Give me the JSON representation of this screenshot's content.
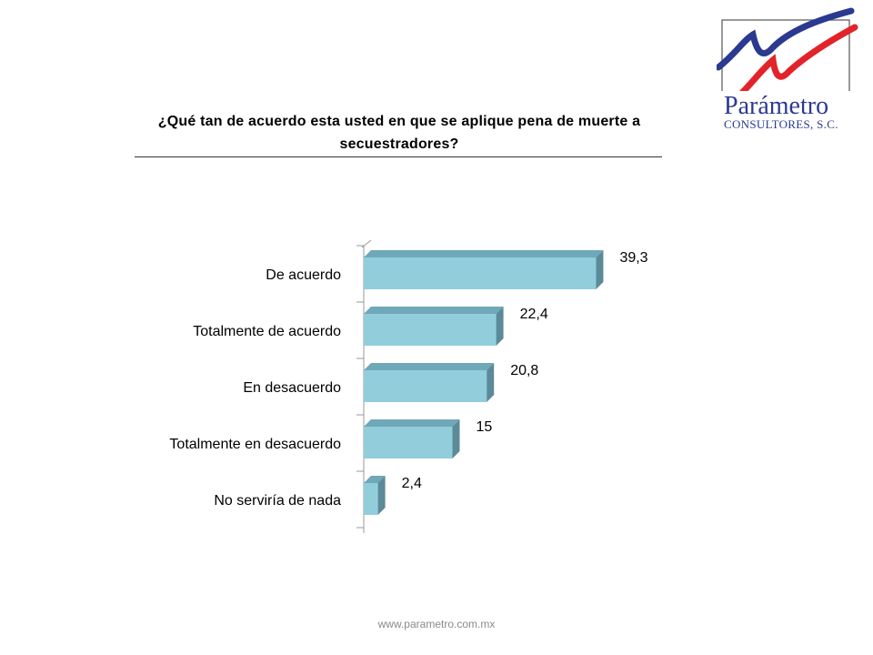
{
  "logo": {
    "name": "Parámetro",
    "subtitle": "Consultores, S.C."
  },
  "footer": {
    "url": "www.parametro.com.mx"
  },
  "colors": {
    "bar_front": "#92CDDC",
    "bar_top": "#6FA8B8",
    "bar_side": "#5B8A98",
    "logo_blue": "#2B3990",
    "logo_red": "#E2232A"
  },
  "chart_data": {
    "type": "bar",
    "orientation": "horizontal",
    "style": "3d",
    "title": "¿Qué tan de acuerdo esta usted en que se aplique pena de muerte a secuestradores?",
    "categories": [
      "De acuerdo",
      "Totalmente de acuerdo",
      "En desacuerdo",
      "Totalmente en desacuerdo",
      "No serviría de nada"
    ],
    "values": [
      39.3,
      22.4,
      20.8,
      15,
      2.4
    ],
    "value_labels": [
      "39,3",
      "22,4",
      "20,8",
      "15",
      "2,4"
    ],
    "xlim": [
      0,
      40
    ],
    "grid": false,
    "legend": "none"
  }
}
